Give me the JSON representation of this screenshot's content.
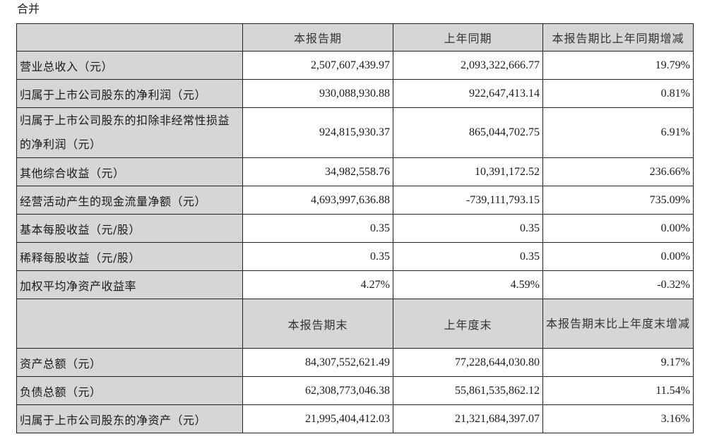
{
  "caption": "合并",
  "table": {
    "header1": [
      "",
      "本报告期",
      "上年同期",
      "本报告期比上年同期增减"
    ],
    "rows1": [
      {
        "label": "营业总收入（元）",
        "current": "2,507,607,439.97",
        "prior": "2,093,322,666.77",
        "change": "19.79%"
      },
      {
        "label": "归属于上市公司股东的净利润（元）",
        "current": "930,088,930.88",
        "prior": "922,647,413.14",
        "change": "0.81%"
      },
      {
        "label": "归属于上市公司股东的扣除非经常性损益的净利润（元）",
        "current": "924,815,930.37",
        "prior": "865,044,702.75",
        "change": "6.91%"
      },
      {
        "label": "其他综合收益（元）",
        "current": "34,982,558.76",
        "prior": "10,391,172.52",
        "change": "236.66%"
      },
      {
        "label": "经营活动产生的现金流量净额（元）",
        "current": "4,693,997,636.88",
        "prior": "-739,111,793.15",
        "change": "735.09%"
      },
      {
        "label": "基本每股收益（元/股）",
        "current": "0.35",
        "prior": "0.35",
        "change": "0.00%"
      },
      {
        "label": "稀释每股收益（元/股）",
        "current": "0.35",
        "prior": "0.35",
        "change": "0.00%"
      },
      {
        "label": "加权平均净资产收益率",
        "current": "4.27%",
        "prior": "4.59%",
        "change": "-0.32%"
      }
    ],
    "header2": [
      "",
      "本报告期末",
      "上年度末",
      "本报告期末比上年度末增减"
    ],
    "rows2": [
      {
        "label": "资产总额（元）",
        "current": "84,307,552,621.49",
        "prior": "77,228,644,030.80",
        "change": "9.17%"
      },
      {
        "label": "负债总额（元）",
        "current": "62,308,773,046.38",
        "prior": "55,861,535,862.12",
        "change": "11.54%"
      },
      {
        "label": "归属于上市公司股东的净资产（元）",
        "current": "21,995,404,412.03",
        "prior": "21,321,684,397.07",
        "change": "3.16%"
      }
    ]
  }
}
